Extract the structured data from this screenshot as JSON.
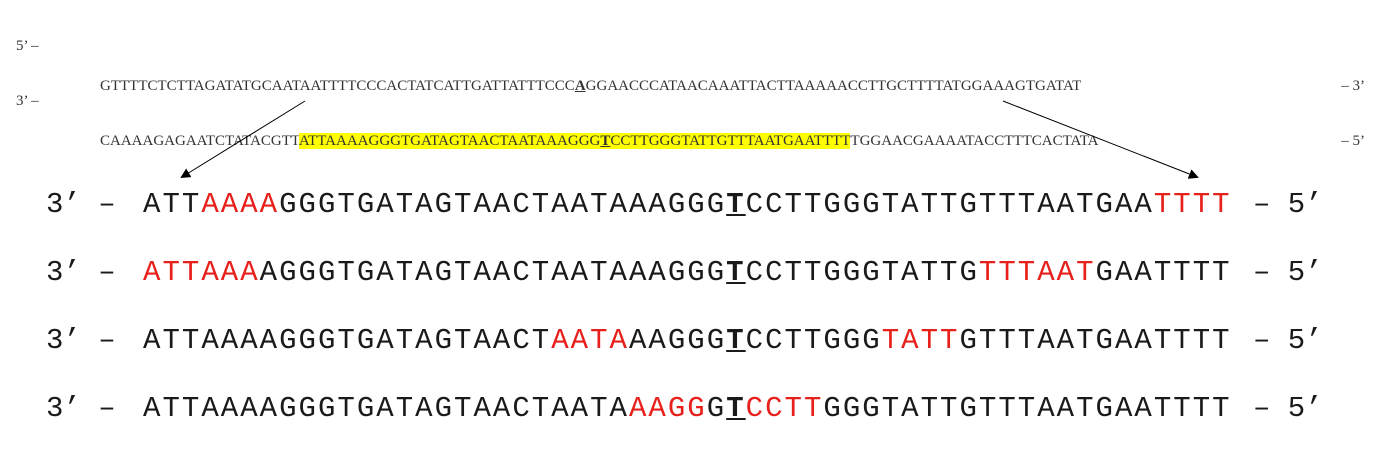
{
  "top_strand": {
    "prefix": "5’ –",
    "seq_before": "GTTTTCTCTTAGATATGCAATAATTTTCCCACTATCATTGATTATTTCCC",
    "marked_base": "A",
    "seq_after": "GGAACCCATAACAAATTACTTAAAAACCTTGCTTTTATGGAAAGTGATAT",
    "suffix": "– 3’"
  },
  "bottom_strand": {
    "prefix": "3’ –",
    "seq_before": "CAAAAGAGAATCTATACGTT",
    "highlight_before": "ATTAAAAGGGTGATAGTAACTAATAAAGGG",
    "marked_base": "T",
    "highlight_after": "CCTTGGGTATTGTTTAATGAATTTT",
    "seq_after": "TGGAACGAAAATACCTTTCACTATA",
    "suffix": "– 5’",
    "highlight_color": "#ffff00"
  },
  "zoom_rows": [
    {
      "prefix": "3’ –",
      "suffix": "– 5’",
      "segments": [
        {
          "text": "ATT",
          "style": "normal"
        },
        {
          "text": "AAAA",
          "style": "red"
        },
        {
          "text": "GGGTGATAGTAACTAATAAAGGG",
          "style": "normal"
        },
        {
          "text": "T",
          "style": "marked"
        },
        {
          "text": "CCTTGGGTATTGTTTAATGAA",
          "style": "normal"
        },
        {
          "text": "TTTT",
          "style": "red"
        }
      ]
    },
    {
      "prefix": "3’ –",
      "suffix": "– 5’",
      "segments": [
        {
          "text": "ATTAAA",
          "style": "red"
        },
        {
          "text": "AGGGTGATAGTAACTAATAAAGGG",
          "style": "normal"
        },
        {
          "text": "T",
          "style": "marked"
        },
        {
          "text": "CCTTGGGTATTG",
          "style": "normal"
        },
        {
          "text": "TTTAAT",
          "style": "red"
        },
        {
          "text": "GAATTTT",
          "style": "normal"
        }
      ]
    },
    {
      "prefix": "3’ –",
      "suffix": "– 5’",
      "segments": [
        {
          "text": "ATTAAAAGGGTGATAGTAACT",
          "style": "normal"
        },
        {
          "text": "AATA",
          "style": "red"
        },
        {
          "text": "AAGGG",
          "style": "normal"
        },
        {
          "text": "T",
          "style": "marked"
        },
        {
          "text": "CCTTGGG",
          "style": "normal"
        },
        {
          "text": "TATT",
          "style": "red"
        },
        {
          "text": "GTTTAATGAATTTT",
          "style": "normal"
        }
      ]
    },
    {
      "prefix": "3’ –",
      "suffix": "– 5’",
      "segments": [
        {
          "text": "ATTAAAAGGGTGATAGTAACTAATA",
          "style": "normal"
        },
        {
          "text": "AAGG",
          "style": "red"
        },
        {
          "text": "G",
          "style": "normal"
        },
        {
          "text": "T",
          "style": "marked"
        },
        {
          "text": "CCTT",
          "style": "red"
        },
        {
          "text": "GGGTATTGTTTAATGAATTTT",
          "style": "normal"
        }
      ]
    }
  ],
  "colors": {
    "mismatch": "#e8201c",
    "text": "#1a1a1a"
  }
}
